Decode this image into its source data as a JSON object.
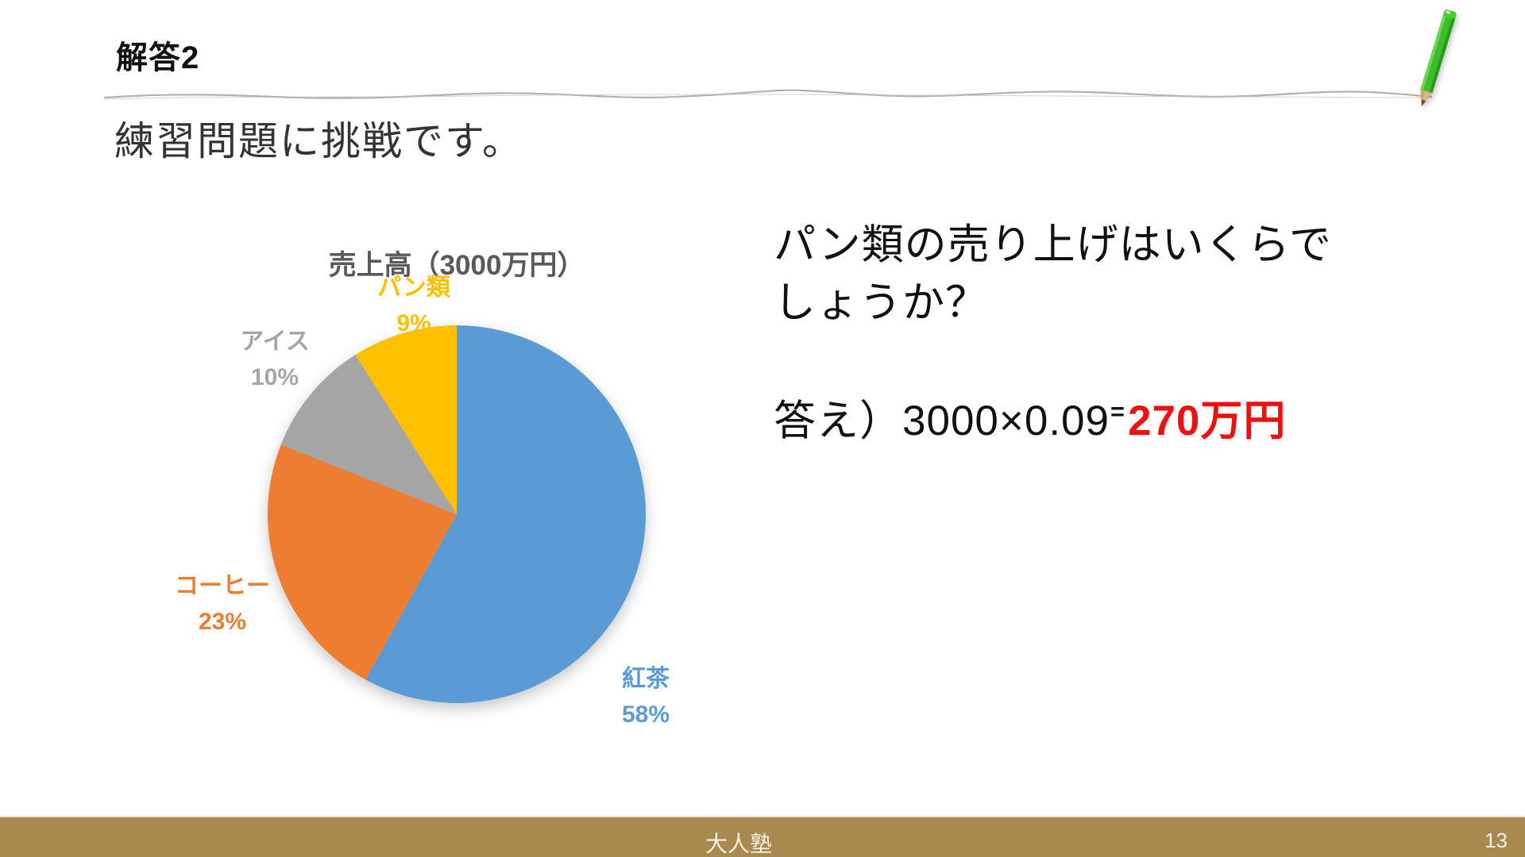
{
  "slide": {
    "title": "解答2",
    "subtitle": "練習問題に挑戦です。",
    "question": {
      "line1": "パン類の売り上げはいくらで",
      "line2": "しょうか？"
    },
    "answer": {
      "prefix": "答え）3000×0.09",
      "equals": "=",
      "value": "270万円",
      "value_color": "#ee1111"
    },
    "footer": {
      "label": "大人塾",
      "page_number": "13",
      "bar_color": "#a8894f"
    },
    "decorations": {
      "pencil": "green-pencil-icon",
      "divider": "hand-drawn-wavy-line"
    }
  },
  "chart_data": {
    "type": "pie",
    "title": "売上高（3000万円）",
    "title_color": "#595959",
    "categories": [
      "紅茶",
      "コーヒー",
      "アイス",
      "パン類"
    ],
    "values": [
      58,
      23,
      10,
      9
    ],
    "unit": "%",
    "colors": [
      "#5b9bd5",
      "#ed7d31",
      "#a5a5a5",
      "#ffc000"
    ],
    "start_angle": "12-oclock",
    "direction": "clockwise",
    "legend": "none",
    "labels": [
      {
        "name": "紅茶",
        "pct": "58%"
      },
      {
        "name": "コーヒー",
        "pct": "23%"
      },
      {
        "name": "アイス",
        "pct": "10%"
      },
      {
        "name": "パン類",
        "pct": "9%"
      }
    ]
  }
}
